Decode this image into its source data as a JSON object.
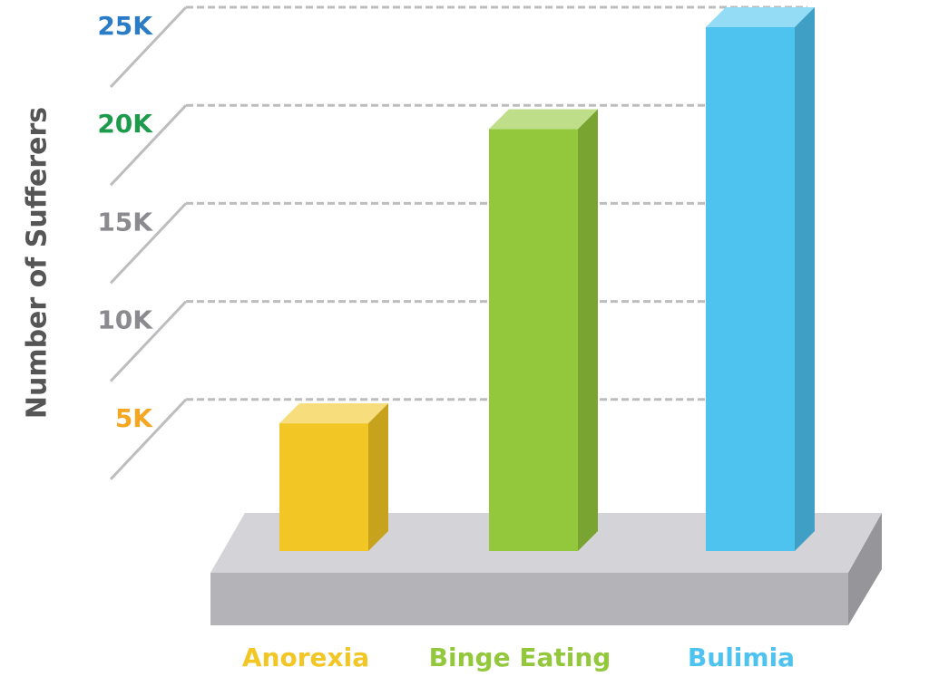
{
  "chart_data": {
    "type": "bar3d",
    "y_label": "Number of Sufferers",
    "categories": [
      "Anorexia",
      "Binge Eating",
      "Bulimia"
    ],
    "values": [
      4800,
      19800,
      25000
    ],
    "colors": [
      "#f2c624",
      "#94c83c",
      "#4ec3ef"
    ],
    "ylim": [
      0,
      25000
    ],
    "yticks": [
      {
        "value": 5000,
        "label": "5K"
      },
      {
        "value": 10000,
        "label": "10K"
      },
      {
        "value": 15000,
        "label": "15K"
      },
      {
        "value": 20000,
        "label": "20K"
      },
      {
        "value": 25000,
        "label": "25K"
      }
    ],
    "ytick_colors": [
      "#f5a623",
      "#8a8a8f",
      "#8a8a8f",
      "#1e9a4c",
      "#2a7cc7"
    ],
    "grid": true
  }
}
